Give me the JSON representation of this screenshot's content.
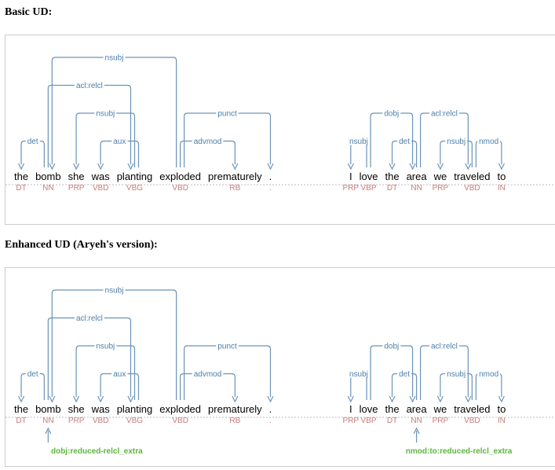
{
  "panels": [
    {
      "heading": "Basic UD:",
      "sentences": [
        {
          "tokens": [
            {
              "word": "the",
              "tag": "DT"
            },
            {
              "word": "bomb",
              "tag": "NN"
            },
            {
              "word": "she",
              "tag": "PRP"
            },
            {
              "word": "was",
              "tag": "VBD"
            },
            {
              "word": "planting",
              "tag": "VBG"
            },
            {
              "word": "exploded",
              "tag": "VBD"
            },
            {
              "word": "prematurely",
              "tag": "RB"
            },
            {
              "word": ".",
              "tag": "."
            }
          ],
          "arcs": [
            {
              "from": 1,
              "to": 0,
              "label": "det"
            },
            {
              "from": 4,
              "to": 3,
              "label": "aux"
            },
            {
              "from": 4,
              "to": 2,
              "label": "nsubj"
            },
            {
              "from": 1,
              "to": 4,
              "label": "acl:relcl"
            },
            {
              "from": 5,
              "to": 1,
              "label": "nsubj"
            },
            {
              "from": 5,
              "to": 6,
              "label": "advmod"
            },
            {
              "from": 5,
              "to": 7,
              "label": "punct"
            }
          ],
          "extra": []
        },
        {
          "tokens": [
            {
              "word": "I",
              "tag": "PRP"
            },
            {
              "word": "love",
              "tag": "VBP"
            },
            {
              "word": "the",
              "tag": "DT"
            },
            {
              "word": "area",
              "tag": "NN"
            },
            {
              "word": "we",
              "tag": "PRP"
            },
            {
              "word": "traveled",
              "tag": "VBD"
            },
            {
              "word": "to",
              "tag": "IN"
            }
          ],
          "arcs": [
            {
              "from": 1,
              "to": 0,
              "label": "nsubj"
            },
            {
              "from": 3,
              "to": 2,
              "label": "det"
            },
            {
              "from": 5,
              "to": 4,
              "label": "nsubj"
            },
            {
              "from": 5,
              "to": 6,
              "label": "nmod"
            },
            {
              "from": 1,
              "to": 3,
              "label": "dobj"
            },
            {
              "from": 3,
              "to": 5,
              "label": "acl:relcl"
            }
          ],
          "extra": []
        }
      ]
    },
    {
      "heading": "Enhanced UD (Aryeh's version):",
      "sentences": [
        {
          "tokens": [
            {
              "word": "the",
              "tag": "DT"
            },
            {
              "word": "bomb",
              "tag": "NN"
            },
            {
              "word": "she",
              "tag": "PRP"
            },
            {
              "word": "was",
              "tag": "VBD"
            },
            {
              "word": "planting",
              "tag": "VBG"
            },
            {
              "word": "exploded",
              "tag": "VBD"
            },
            {
              "word": "prematurely",
              "tag": "RB"
            },
            {
              "word": ".",
              "tag": "."
            }
          ],
          "arcs": [
            {
              "from": 1,
              "to": 0,
              "label": "det"
            },
            {
              "from": 4,
              "to": 3,
              "label": "aux"
            },
            {
              "from": 4,
              "to": 2,
              "label": "nsubj"
            },
            {
              "from": 1,
              "to": 4,
              "label": "acl:relcl"
            },
            {
              "from": 5,
              "to": 1,
              "label": "nsubj"
            },
            {
              "from": 5,
              "to": 6,
              "label": "advmod"
            },
            {
              "from": 5,
              "to": 7,
              "label": "punct"
            }
          ],
          "extra": [
            {
              "from": 4,
              "to": 1,
              "label": "dobj:reduced-relcl_extra"
            }
          ]
        },
        {
          "tokens": [
            {
              "word": "I",
              "tag": "PRP"
            },
            {
              "word": "love",
              "tag": "VBP"
            },
            {
              "word": "the",
              "tag": "DT"
            },
            {
              "word": "area",
              "tag": "NN"
            },
            {
              "word": "we",
              "tag": "PRP"
            },
            {
              "word": "traveled",
              "tag": "VBD"
            },
            {
              "word": "to",
              "tag": "IN"
            }
          ],
          "arcs": [
            {
              "from": 1,
              "to": 0,
              "label": "nsubj"
            },
            {
              "from": 3,
              "to": 2,
              "label": "det"
            },
            {
              "from": 5,
              "to": 4,
              "label": "nsubj"
            },
            {
              "from": 5,
              "to": 6,
              "label": "nmod"
            },
            {
              "from": 1,
              "to": 3,
              "label": "dobj"
            },
            {
              "from": 3,
              "to": 5,
              "label": "acl:relcl"
            }
          ],
          "extra": [
            {
              "from": 5,
              "to": 3,
              "label": "nmod:to:reduced-relcl_extra"
            }
          ]
        }
      ]
    }
  ]
}
